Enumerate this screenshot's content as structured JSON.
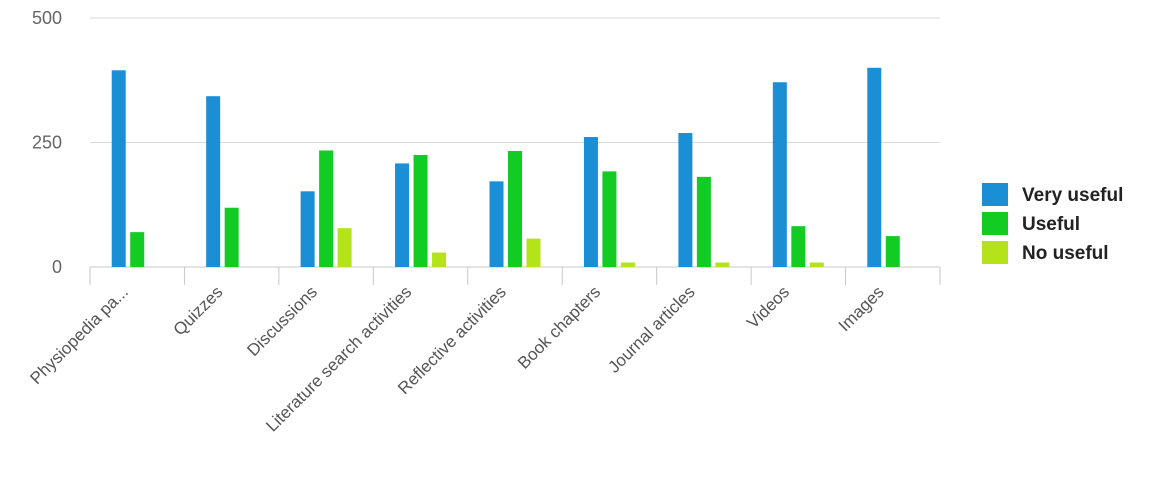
{
  "chart_data": {
    "type": "bar",
    "title": "",
    "xlabel": "",
    "ylabel": "",
    "ylim": [
      0,
      500
    ],
    "yticks": [
      0,
      250,
      500
    ],
    "grid": true,
    "legend_position": "right",
    "categories": [
      "Physiopedia pa...",
      "Quizzes",
      "Discussions",
      "Literature search activities",
      "Reflective activities",
      "Book chapters",
      "Journal articles",
      "Videos",
      "Images"
    ],
    "series": [
      {
        "name": "Very useful",
        "color": "#1a8fd6",
        "values": [
          395,
          343,
          152,
          208,
          172,
          261,
          269,
          371,
          400
        ]
      },
      {
        "name": "Useful",
        "color": "#12cc23",
        "values": [
          70,
          119,
          234,
          225,
          233,
          192,
          181,
          82,
          62
        ]
      },
      {
        "name": "No useful",
        "color": "#b5e31a",
        "values": [
          0,
          0,
          78,
          29,
          57,
          9,
          9,
          9,
          0
        ]
      }
    ]
  }
}
